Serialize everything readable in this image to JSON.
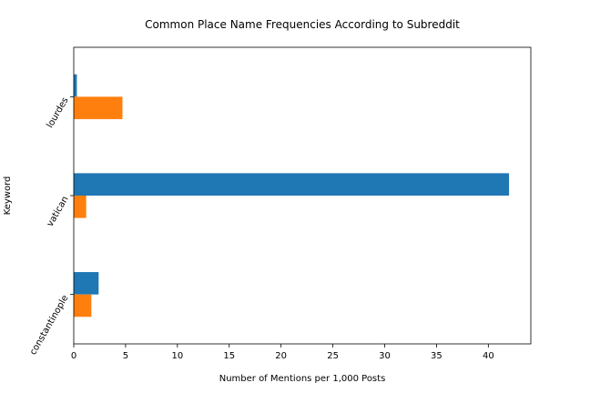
{
  "chart_data": {
    "type": "bar",
    "orientation": "horizontal",
    "title": "Common Place Name Frequencies According to Subreddit",
    "xlabel": "Number of Mentions per 1,000 Posts",
    "ylabel": "Keyword",
    "categories": [
      "lourdes",
      "vatican",
      "constantinople"
    ],
    "series": [
      {
        "color": "#1f77b4",
        "values": [
          0.3,
          42.0,
          2.4
        ]
      },
      {
        "color": "#ff7f0e",
        "values": [
          4.7,
          1.2,
          1.7
        ]
      }
    ],
    "xlim": [
      0,
      44.1
    ],
    "xticks": [
      0,
      5,
      10,
      15,
      20,
      25,
      30,
      35,
      40
    ],
    "grid": false,
    "legend": "none"
  }
}
